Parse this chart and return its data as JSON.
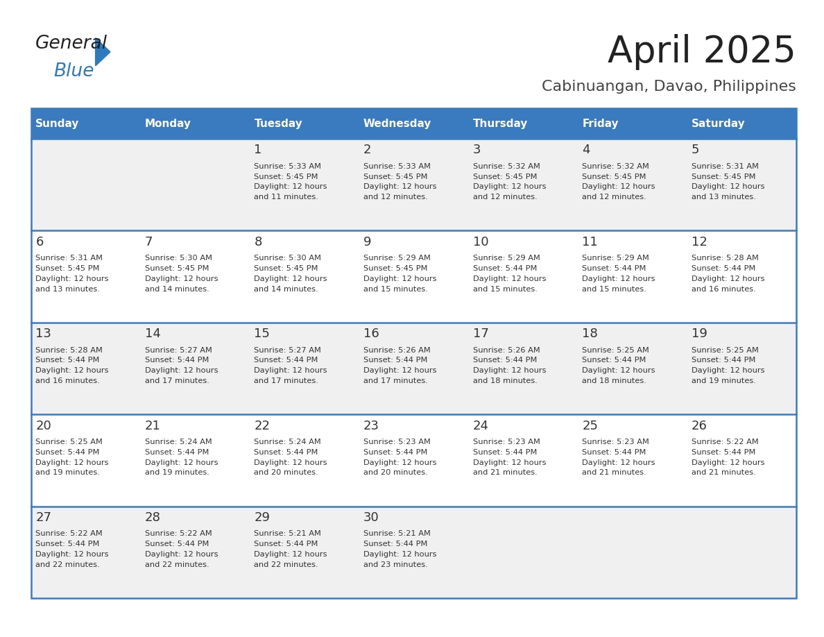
{
  "title": "April 2025",
  "subtitle": "Cabinuangan, Davao, Philippines",
  "days_of_week": [
    "Sunday",
    "Monday",
    "Tuesday",
    "Wednesday",
    "Thursday",
    "Friday",
    "Saturday"
  ],
  "header_bg": "#3a7bbf",
  "header_text": "#ffffff",
  "row_bg_odd": "#f0f0f0",
  "row_bg_even": "#ffffff",
  "cell_border": "#3a7bbf",
  "title_color": "#222222",
  "subtitle_color": "#444444",
  "text_color": "#333333",
  "logo_black": "#222222",
  "logo_blue": "#2e7abf",
  "calendar": [
    [
      {
        "day": null,
        "info": null
      },
      {
        "day": null,
        "info": null
      },
      {
        "day": 1,
        "info": "Sunrise: 5:33 AM\nSunset: 5:45 PM\nDaylight: 12 hours\nand 11 minutes."
      },
      {
        "day": 2,
        "info": "Sunrise: 5:33 AM\nSunset: 5:45 PM\nDaylight: 12 hours\nand 12 minutes."
      },
      {
        "day": 3,
        "info": "Sunrise: 5:32 AM\nSunset: 5:45 PM\nDaylight: 12 hours\nand 12 minutes."
      },
      {
        "day": 4,
        "info": "Sunrise: 5:32 AM\nSunset: 5:45 PM\nDaylight: 12 hours\nand 12 minutes."
      },
      {
        "day": 5,
        "info": "Sunrise: 5:31 AM\nSunset: 5:45 PM\nDaylight: 12 hours\nand 13 minutes."
      }
    ],
    [
      {
        "day": 6,
        "info": "Sunrise: 5:31 AM\nSunset: 5:45 PM\nDaylight: 12 hours\nand 13 minutes."
      },
      {
        "day": 7,
        "info": "Sunrise: 5:30 AM\nSunset: 5:45 PM\nDaylight: 12 hours\nand 14 minutes."
      },
      {
        "day": 8,
        "info": "Sunrise: 5:30 AM\nSunset: 5:45 PM\nDaylight: 12 hours\nand 14 minutes."
      },
      {
        "day": 9,
        "info": "Sunrise: 5:29 AM\nSunset: 5:45 PM\nDaylight: 12 hours\nand 15 minutes."
      },
      {
        "day": 10,
        "info": "Sunrise: 5:29 AM\nSunset: 5:44 PM\nDaylight: 12 hours\nand 15 minutes."
      },
      {
        "day": 11,
        "info": "Sunrise: 5:29 AM\nSunset: 5:44 PM\nDaylight: 12 hours\nand 15 minutes."
      },
      {
        "day": 12,
        "info": "Sunrise: 5:28 AM\nSunset: 5:44 PM\nDaylight: 12 hours\nand 16 minutes."
      }
    ],
    [
      {
        "day": 13,
        "info": "Sunrise: 5:28 AM\nSunset: 5:44 PM\nDaylight: 12 hours\nand 16 minutes."
      },
      {
        "day": 14,
        "info": "Sunrise: 5:27 AM\nSunset: 5:44 PM\nDaylight: 12 hours\nand 17 minutes."
      },
      {
        "day": 15,
        "info": "Sunrise: 5:27 AM\nSunset: 5:44 PM\nDaylight: 12 hours\nand 17 minutes."
      },
      {
        "day": 16,
        "info": "Sunrise: 5:26 AM\nSunset: 5:44 PM\nDaylight: 12 hours\nand 17 minutes."
      },
      {
        "day": 17,
        "info": "Sunrise: 5:26 AM\nSunset: 5:44 PM\nDaylight: 12 hours\nand 18 minutes."
      },
      {
        "day": 18,
        "info": "Sunrise: 5:25 AM\nSunset: 5:44 PM\nDaylight: 12 hours\nand 18 minutes."
      },
      {
        "day": 19,
        "info": "Sunrise: 5:25 AM\nSunset: 5:44 PM\nDaylight: 12 hours\nand 19 minutes."
      }
    ],
    [
      {
        "day": 20,
        "info": "Sunrise: 5:25 AM\nSunset: 5:44 PM\nDaylight: 12 hours\nand 19 minutes."
      },
      {
        "day": 21,
        "info": "Sunrise: 5:24 AM\nSunset: 5:44 PM\nDaylight: 12 hours\nand 19 minutes."
      },
      {
        "day": 22,
        "info": "Sunrise: 5:24 AM\nSunset: 5:44 PM\nDaylight: 12 hours\nand 20 minutes."
      },
      {
        "day": 23,
        "info": "Sunrise: 5:23 AM\nSunset: 5:44 PM\nDaylight: 12 hours\nand 20 minutes."
      },
      {
        "day": 24,
        "info": "Sunrise: 5:23 AM\nSunset: 5:44 PM\nDaylight: 12 hours\nand 21 minutes."
      },
      {
        "day": 25,
        "info": "Sunrise: 5:23 AM\nSunset: 5:44 PM\nDaylight: 12 hours\nand 21 minutes."
      },
      {
        "day": 26,
        "info": "Sunrise: 5:22 AM\nSunset: 5:44 PM\nDaylight: 12 hours\nand 21 minutes."
      }
    ],
    [
      {
        "day": 27,
        "info": "Sunrise: 5:22 AM\nSunset: 5:44 PM\nDaylight: 12 hours\nand 22 minutes."
      },
      {
        "day": 28,
        "info": "Sunrise: 5:22 AM\nSunset: 5:44 PM\nDaylight: 12 hours\nand 22 minutes."
      },
      {
        "day": 29,
        "info": "Sunrise: 5:21 AM\nSunset: 5:44 PM\nDaylight: 12 hours\nand 22 minutes."
      },
      {
        "day": 30,
        "info": "Sunrise: 5:21 AM\nSunset: 5:44 PM\nDaylight: 12 hours\nand 23 minutes."
      },
      {
        "day": null,
        "info": null
      },
      {
        "day": null,
        "info": null
      },
      {
        "day": null,
        "info": null
      }
    ]
  ]
}
